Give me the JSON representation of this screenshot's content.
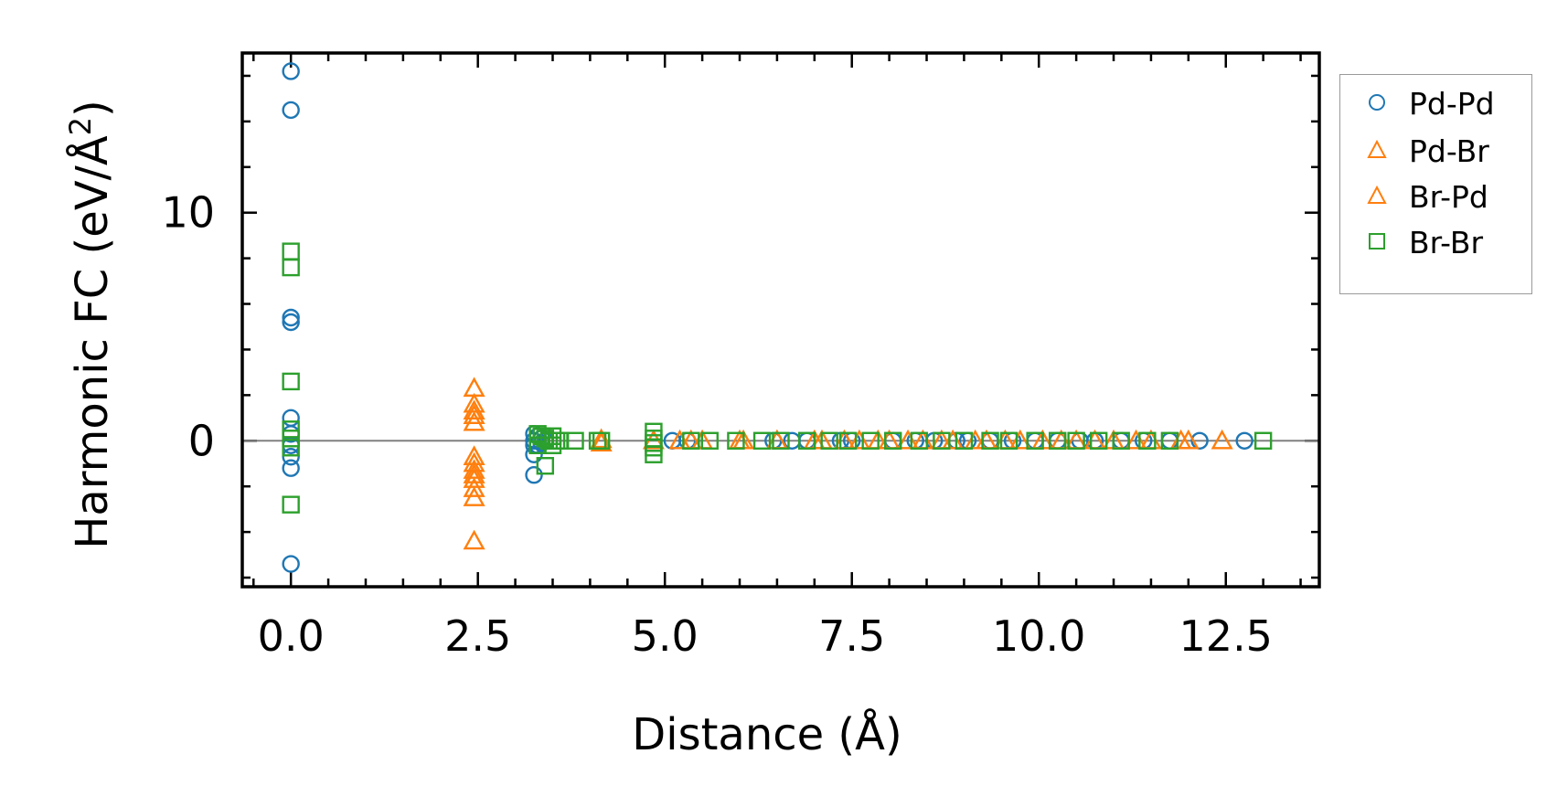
{
  "chart_data": {
    "type": "scatter",
    "title": "",
    "xlabel": "Distance (Å)",
    "ylabel": "Harmonic FC (eV/Å",
    "ylabel_sup": "2",
    "ylabel_end": ")",
    "xlim": [
      -0.65,
      13.75
    ],
    "ylim": [
      -6.4,
      17.0
    ],
    "xticks": [
      0,
      2.5,
      5,
      7.5,
      10,
      12.5
    ],
    "xtick_labels": [
      "0.0",
      "2.5",
      "5.0",
      "7.5",
      "10.0",
      "12.5"
    ],
    "yticks": [
      0,
      10
    ],
    "ytick_labels": [
      "0",
      "10"
    ],
    "zero_line": true,
    "legend_position": "outside-right",
    "series": [
      {
        "name": "Pd-Pd",
        "marker": "circle",
        "color": "#1f77b4",
        "x": [
          0,
          0,
          0,
          0,
          0,
          0,
          0,
          0,
          0,
          0,
          3.25,
          3.25,
          3.25,
          3.25,
          3.25,
          3.3,
          3.3,
          3.35,
          3.35,
          3.4,
          5.1,
          5.3,
          6.45,
          6.7,
          6.9,
          7.35,
          7.5,
          8.05,
          8.35,
          8.6,
          8.9,
          9.05,
          9.35,
          9.65,
          9.95,
          10.25,
          10.55,
          10.75,
          11.1,
          11.4,
          11.75,
          12.15,
          12.75
        ],
        "y": [
          16.2,
          14.5,
          5.4,
          5.2,
          1.0,
          0.3,
          -0.2,
          -0.7,
          -1.2,
          -5.4,
          0.3,
          0.0,
          -0.2,
          -0.6,
          -1.5,
          0.2,
          -0.2,
          0.1,
          -0.1,
          0,
          0,
          0,
          0,
          0,
          0,
          0,
          0,
          0,
          0,
          0,
          0,
          0,
          0,
          0,
          0,
          0,
          0,
          0,
          0,
          0,
          0,
          0,
          0
        ]
      },
      {
        "name": "Pd-Br",
        "marker": "triangle",
        "color": "#ff7f0e",
        "x": [
          2.45,
          2.45,
          2.45,
          2.45,
          2.45,
          2.45,
          2.45,
          2.45,
          2.45,
          2.45,
          2.45,
          2.45,
          2.45,
          4.15,
          4.15,
          5.2,
          5.5,
          6.05,
          6.5,
          7.1,
          7.6,
          8.0,
          8.45,
          8.85,
          9.3,
          9.75,
          10.3,
          10.75,
          11.3,
          11.9,
          12.45
        ],
        "y": [
          2.3,
          1.6,
          1.3,
          1.1,
          0.8,
          -0.7,
          -1.0,
          -1.3,
          -1.5,
          -1.7,
          -2.1,
          -2.5,
          -4.4,
          0.05,
          -0.1,
          0,
          0,
          0,
          0,
          0,
          0,
          0,
          0,
          0,
          0,
          0,
          0,
          0,
          0,
          0,
          0
        ]
      },
      {
        "name": "Br-Pd",
        "marker": "triangle",
        "color": "#ff7f0e",
        "x": [
          4.85,
          5.35,
          6.0,
          6.5,
          7.0,
          7.4,
          7.85,
          8.25,
          8.7,
          9.15,
          9.55,
          10.05,
          10.5,
          11.0,
          11.5,
          12.0
        ],
        "y": [
          0,
          0,
          0,
          0,
          0,
          0,
          0,
          0,
          0,
          0,
          0,
          0,
          0,
          0,
          0,
          0
        ]
      },
      {
        "name": "Br-Br",
        "marker": "square",
        "color": "#2ca02c",
        "x": [
          0,
          0,
          0,
          0,
          0,
          0,
          0,
          3.3,
          3.3,
          3.35,
          3.4,
          3.4,
          3.45,
          3.5,
          3.5,
          3.55,
          3.6,
          3.8,
          4.1,
          4.15,
          4.85,
          4.85,
          4.85,
          4.85,
          4.85,
          5.35,
          5.6,
          5.95,
          6.3,
          6.55,
          6.9,
          7.2,
          7.45,
          7.75,
          8.05,
          8.4,
          8.7,
          9.0,
          9.35,
          9.6,
          9.95,
          10.25,
          10.5,
          10.8,
          11.1,
          11.45,
          11.75,
          13.0
        ],
        "y": [
          8.3,
          7.6,
          2.6,
          0.5,
          0.1,
          -0.3,
          -2.8,
          0.3,
          -0.2,
          0.2,
          -1.1,
          0.1,
          0.0,
          0.2,
          -0.2,
          0.0,
          0.0,
          0.0,
          0.0,
          0.0,
          0.4,
          0.1,
          -0.1,
          -0.3,
          -0.6,
          0,
          0,
          0,
          0,
          0,
          0,
          0,
          0,
          0,
          0,
          0,
          0,
          0,
          0,
          0,
          0,
          0,
          0,
          0,
          0,
          0,
          0,
          0
        ]
      }
    ]
  }
}
